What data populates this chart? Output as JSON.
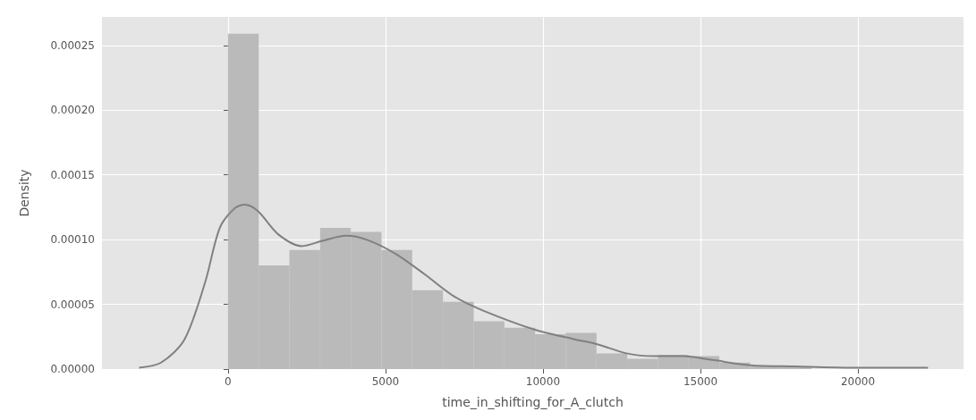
{
  "chart_data": {
    "type": "histogram",
    "xlabel": "time_in_shifting_for_A_clutch",
    "ylabel": "Density",
    "bins": [
      0,
      975,
      1950,
      2925,
      3900,
      4875,
      5850,
      6825,
      7800,
      8775,
      9750,
      10725,
      11700,
      12675,
      13650,
      14625,
      15600,
      16575,
      17550,
      18525,
      19500
    ],
    "values": [
      0.000259,
      8e-05,
      9.2e-05,
      0.000109,
      0.000106,
      9.2e-05,
      6.1e-05,
      5.2e-05,
      3.7e-05,
      3.2e-05,
      2.7e-05,
      2.8e-05,
      1.2e-05,
      8e-06,
      1.1e-05,
      1e-05,
      5e-06,
      2e-06,
      2e-06,
      null
    ],
    "color": "#bababa",
    "series": [
      {
        "type": "line",
        "color": "#808080",
        "x": [
          -2821,
          -2123,
          -1378,
          -726,
          -261,
          205,
          531,
          950,
          1601,
          2346,
          2998,
          3743,
          4394,
          5325,
          6256,
          7187,
          8118,
          9795,
          11005,
          11750,
          12681,
          13519,
          14450,
          15381,
          16591,
          17988,
          19850,
          22224
        ],
        "values": [
          1e-06,
          5e-06,
          2.3e-05,
          6.7e-05,
          0.000109,
          0.000124,
          0.000127,
          0.000122,
          0.000104,
          9.5e-05,
          9.9e-05,
          0.000103,
          0.0001,
          8.9e-05,
          7.3e-05,
          5.6e-05,
          4.5e-05,
          3e-05,
          2.3e-05,
          1.9e-05,
          1.2e-05,
          1e-05,
          1e-05,
          7e-06,
          3e-06,
          2e-06,
          1e-06,
          1e-06
        ]
      }
    ],
    "xlim": [
      -4000,
      23350
    ],
    "xticks": [
      0,
      5000,
      10000,
      15000,
      20000
    ],
    "ylim": [
      0,
      0.000272
    ],
    "yticks": [
      {
        "value": 0,
        "label": "0.00000"
      },
      {
        "value": 5e-05,
        "label": "0.00005"
      },
      {
        "value": 0.0001,
        "label": "0.00010"
      },
      {
        "value": 0.00015,
        "label": "0.00015"
      },
      {
        "value": 0.0002,
        "label": "0.00020"
      },
      {
        "value": 0.00025,
        "label": "0.00025"
      }
    ],
    "grid": true
  }
}
